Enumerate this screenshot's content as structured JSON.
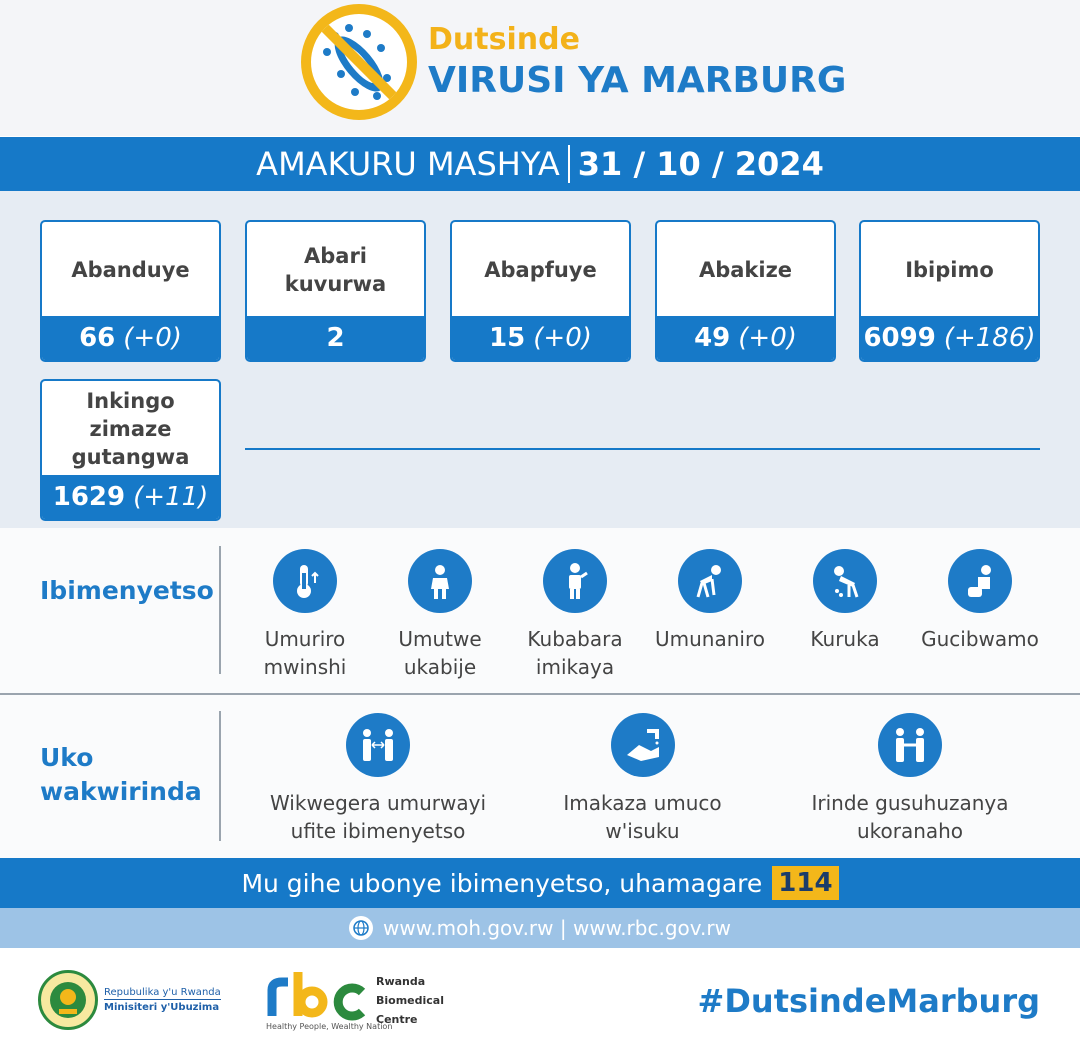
{
  "header": {
    "title_line1": "Dutsinde",
    "title_line2": "VIRUSI YA MARBURG"
  },
  "date_bar": {
    "label": "AMAKURU MASHYA",
    "date": "31 / 10 / 2024"
  },
  "stats": [
    {
      "label": "Abanduye",
      "value": "66",
      "change": "(+0)"
    },
    {
      "label": "Abari kuvurwa",
      "value": "2",
      "change": ""
    },
    {
      "label": "Abapfuye",
      "value": "15",
      "change": "(+0)"
    },
    {
      "label": "Abakize",
      "value": "49",
      "change": "(+0)"
    },
    {
      "label": "Ibipimo",
      "value": "6099",
      "change": "(+186)"
    },
    {
      "label": "Inkingo zimaze gutangwa",
      "value": "1629",
      "change": "(+11)"
    }
  ],
  "symptoms": {
    "title": "Ibimenyetso",
    "items": [
      {
        "icon": "thermometer-icon",
        "line1": "Umuriro",
        "line2": "mwinshi"
      },
      {
        "icon": "headache-icon",
        "line1": "Umutwe",
        "line2": "ukabije"
      },
      {
        "icon": "muscle-pain-icon",
        "line1": "Kubabara",
        "line2": "imikaya"
      },
      {
        "icon": "fatigue-icon",
        "line1": "Umunaniro",
        "line2": ""
      },
      {
        "icon": "vomiting-icon",
        "line1": "Kuruka",
        "line2": ""
      },
      {
        "icon": "diarrhea-icon",
        "line1": "Gucibwamo",
        "line2": ""
      }
    ]
  },
  "prevention": {
    "title_line1": "Uko",
    "title_line2": "wakwirinda",
    "items": [
      {
        "icon": "distance-icon",
        "line1": "Wikwegera umurwayi",
        "line2": "ufite ibimenyetso"
      },
      {
        "icon": "handwash-icon",
        "line1": "Imakaza umuco",
        "line2": "w'isuku"
      },
      {
        "icon": "no-handshake-icon",
        "line1": "Irinde gusuhuzanya",
        "line2": "ukoranaho"
      }
    ]
  },
  "call_bar": {
    "text": "Mu gihe ubonye ibimenyetso, uhamagare",
    "number": "114"
  },
  "web_bar": {
    "text": "www.moh.gov.rw | www.rbc.gov.rw"
  },
  "footer": {
    "gov_line1": "Repubulika y'u Rwanda",
    "gov_line2": "Minisiteri y'Ubuzima",
    "rbc_name1": "Rwanda",
    "rbc_name2": "Biomedical",
    "rbc_name3": "Centre",
    "rbc_slogan": "Healthy People, Wealthy Nation",
    "hashtag": "#DutsindeMarburg"
  },
  "colors": {
    "primary_blue": "#1679c8",
    "accent_yellow": "#f3b71a"
  }
}
